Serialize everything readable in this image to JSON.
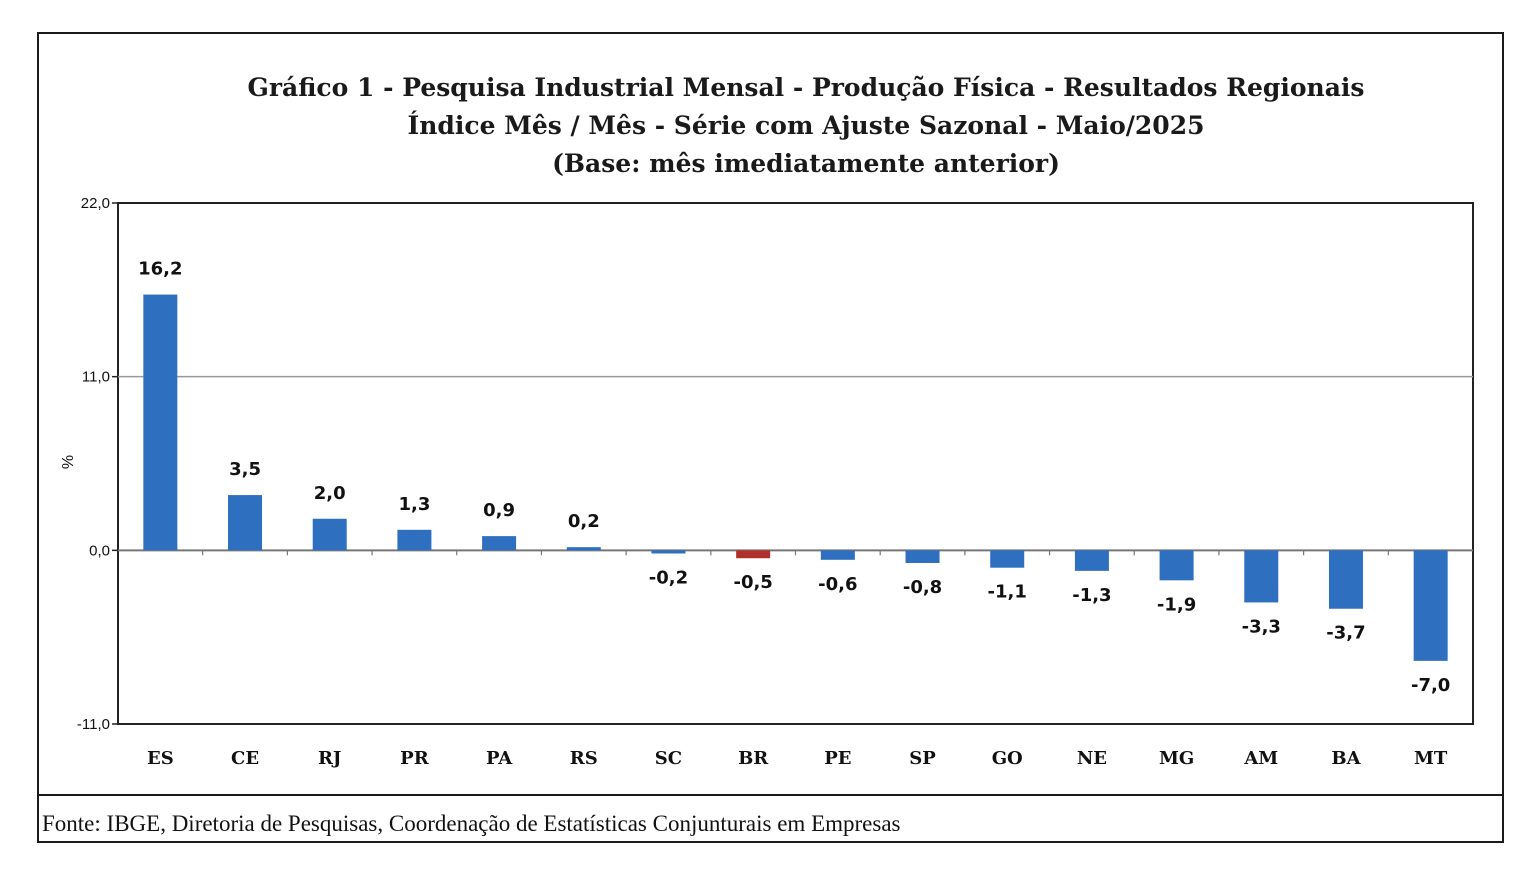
{
  "chart_data": {
    "type": "bar",
    "title": [
      "Gráfico 1 - Pesquisa Industrial Mensal - Produção Física - Resultados Regionais",
      "Índice Mês / Mês - Série com Ajuste Sazonal - Maio/2025",
      "(Base: mês imediatamente anterior)"
    ],
    "ylabel": "%",
    "xlabel": "",
    "ylim": [
      -11.0,
      22.0
    ],
    "yticks": [
      22.0,
      11.0,
      0.0,
      -11.0
    ],
    "ytick_labels": [
      "22,0",
      "11,0",
      "0,0",
      "-11,0"
    ],
    "categories": [
      "ES",
      "CE",
      "RJ",
      "PR",
      "PA",
      "RS",
      "SC",
      "BR",
      "PE",
      "SP",
      "GO",
      "NE",
      "MG",
      "AM",
      "BA",
      "MT"
    ],
    "values": [
      16.2,
      3.5,
      2.0,
      1.3,
      0.9,
      0.2,
      -0.2,
      -0.5,
      -0.6,
      -0.8,
      -1.1,
      -1.3,
      -1.9,
      -3.3,
      -3.7,
      -7.0
    ],
    "value_labels": [
      "16,2",
      "3,5",
      "2,0",
      "1,3",
      "0,9",
      "0,2",
      "-0,2",
      "-0,5",
      "-0,6",
      "-0,8",
      "-1,1",
      "-1,3",
      "-1,9",
      "-3,3",
      "-3,7",
      "-7,0"
    ],
    "colors": {
      "default": "#2e6fbf",
      "highlight": "#b0302a"
    },
    "highlight_category": "BR",
    "grid": true,
    "source": "Fonte: IBGE, Diretoria de Pesquisas, Coordenação de Estatísticas Conjunturais em Empresas"
  }
}
